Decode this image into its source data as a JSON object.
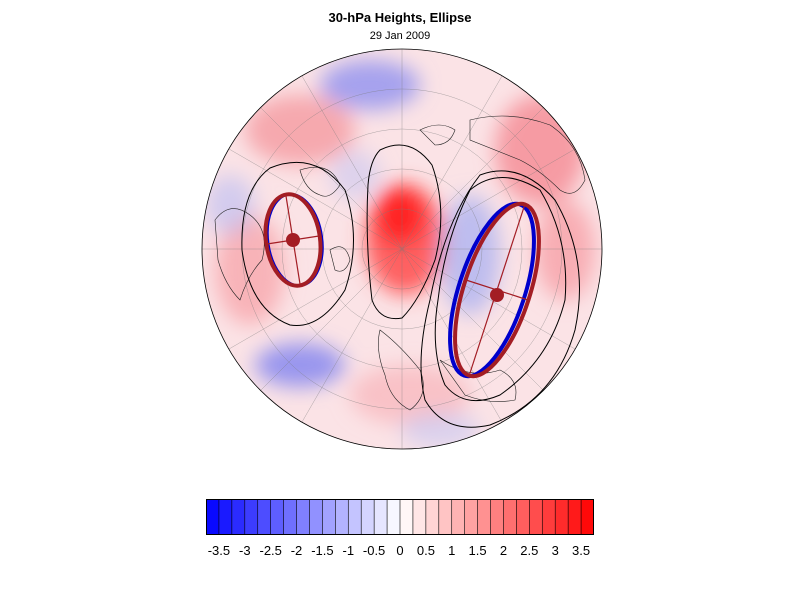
{
  "map": {
    "title": "30-hPa Heights, Ellipse",
    "subtitle": "29 Jan 2009",
    "projection": "north-polar-stereographic",
    "colors": {
      "negative_max": "#0000ff",
      "neutral": "#ffffff",
      "positive_max": "#ff0000",
      "ellipse_fill_line": "#a31d24",
      "ellipse_blue": "#0000cc",
      "contour": "#000000"
    }
  },
  "colorbar": {
    "ticks": [
      "-3.5",
      "-3",
      "-2.5",
      "-2",
      "-1.5",
      "-1",
      "-0.5",
      "0",
      "0.5",
      "1",
      "1.5",
      "2",
      "2.5",
      "3",
      "3.5"
    ],
    "min": -3.75,
    "max": 3.75,
    "step": 0.25
  }
}
